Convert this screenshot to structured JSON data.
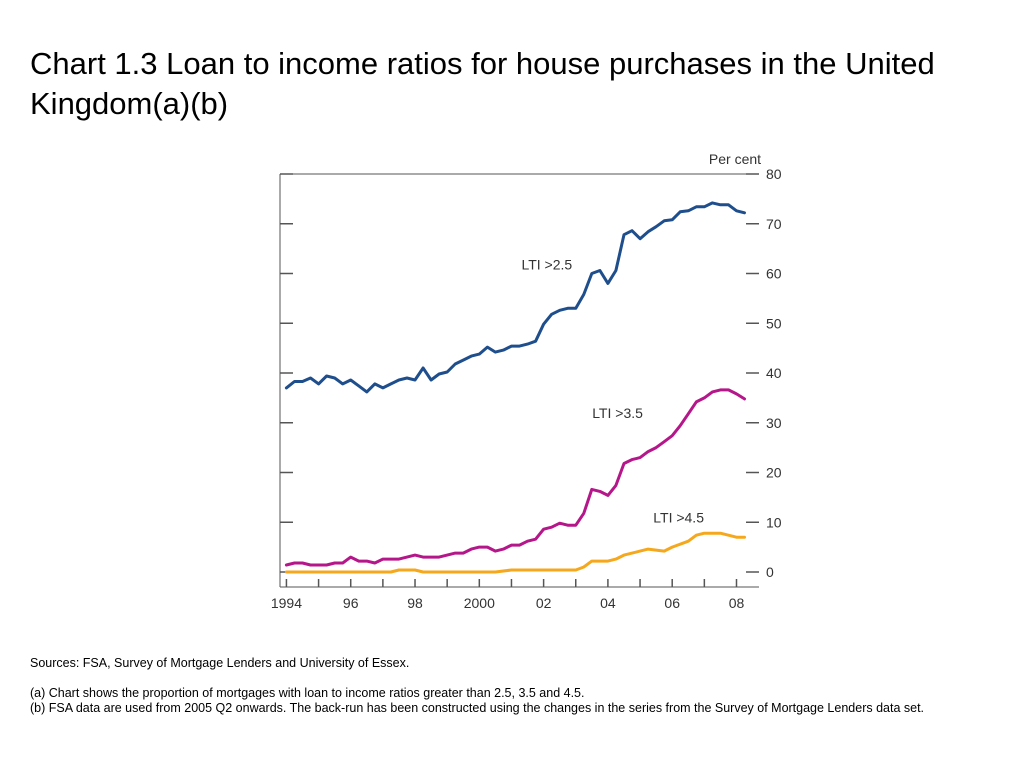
{
  "slide": {
    "title": "Chart 1.3  Loan to income ratios for house purchases in the United Kingdom(a)(b)",
    "sources": "Sources:  FSA, Survey of Mortgage Lenders and University of Essex.",
    "note_a": "(a)  Chart shows the proportion of mortgages with loan to income ratios greater than 2.5, 3.5 and 4.5.",
    "note_b": "(b)  FSA data are used from 2005 Q2 onwards.  The back-run has been constructed using the changes in the series from the Survey of Mortgage Lenders data set."
  },
  "chart_data": {
    "type": "line",
    "title": "",
    "xlabel": "",
    "ylabel": "Per cent",
    "y_axis_side": "right",
    "ylim": [
      0,
      80
    ],
    "y_ticks": [
      "0",
      "10",
      "20",
      "30",
      "40",
      "50",
      "60",
      "70",
      "80"
    ],
    "x_tick_labels": [
      "1994",
      "96",
      "98",
      "2000",
      "02",
      "04",
      "06",
      "08"
    ],
    "x_tick_years": [
      1994,
      1996,
      1998,
      2000,
      2002,
      2004,
      2006,
      2008
    ],
    "xlim": [
      1993.8,
      2008.7
    ],
    "grid": false,
    "colors": {
      "lti_25": "#1f4e8c",
      "lti_35": "#b5178a",
      "lti_45": "#f5a81c",
      "axis": "#555555"
    },
    "series": [
      {
        "name": "LTI >2.5",
        "color": "#1f4e8c",
        "points": [
          [
            1994.0,
            37.0
          ],
          [
            1994.25,
            38.3
          ],
          [
            1994.5,
            38.3
          ],
          [
            1994.75,
            39.0
          ],
          [
            1995.0,
            37.8
          ],
          [
            1995.25,
            39.4
          ],
          [
            1995.5,
            39.0
          ],
          [
            1995.75,
            37.8
          ],
          [
            1996.0,
            38.6
          ],
          [
            1996.25,
            37.4
          ],
          [
            1996.5,
            36.2
          ],
          [
            1996.75,
            37.8
          ],
          [
            1997.0,
            37.0
          ],
          [
            1997.25,
            37.8
          ],
          [
            1997.5,
            38.6
          ],
          [
            1997.75,
            39.0
          ],
          [
            1998.0,
            38.6
          ],
          [
            1998.25,
            41.0
          ],
          [
            1998.5,
            38.6
          ],
          [
            1998.75,
            39.8
          ],
          [
            1999.0,
            40.2
          ],
          [
            1999.25,
            41.8
          ],
          [
            1999.5,
            42.6
          ],
          [
            1999.75,
            43.4
          ],
          [
            2000.0,
            43.8
          ],
          [
            2000.25,
            45.2
          ],
          [
            2000.5,
            44.2
          ],
          [
            2000.75,
            44.6
          ],
          [
            2001.0,
            45.4
          ],
          [
            2001.25,
            45.4
          ],
          [
            2001.5,
            45.8
          ],
          [
            2001.75,
            46.4
          ],
          [
            2002.0,
            49.8
          ],
          [
            2002.25,
            51.8
          ],
          [
            2002.5,
            52.6
          ],
          [
            2002.75,
            53.0
          ],
          [
            2003.0,
            53.0
          ],
          [
            2003.25,
            55.8
          ],
          [
            2003.5,
            60.0
          ],
          [
            2003.75,
            60.6
          ],
          [
            2004.0,
            58.0
          ],
          [
            2004.25,
            60.6
          ],
          [
            2004.5,
            67.8
          ],
          [
            2004.75,
            68.6
          ],
          [
            2005.0,
            67.0
          ],
          [
            2005.25,
            68.4
          ],
          [
            2005.5,
            69.4
          ],
          [
            2005.75,
            70.6
          ],
          [
            2006.0,
            70.8
          ],
          [
            2006.25,
            72.4
          ],
          [
            2006.5,
            72.6
          ],
          [
            2006.75,
            73.4
          ],
          [
            2007.0,
            73.4
          ],
          [
            2007.25,
            74.2
          ],
          [
            2007.5,
            73.8
          ],
          [
            2007.75,
            73.8
          ],
          [
            2008.0,
            72.6
          ],
          [
            2008.25,
            72.2
          ]
        ]
      },
      {
        "name": "LTI >3.5",
        "color": "#b5178a",
        "points": [
          [
            1994.0,
            1.4
          ],
          [
            1994.25,
            1.8
          ],
          [
            1994.5,
            1.8
          ],
          [
            1994.75,
            1.4
          ],
          [
            1995.0,
            1.4
          ],
          [
            1995.25,
            1.4
          ],
          [
            1995.5,
            1.8
          ],
          [
            1995.75,
            1.8
          ],
          [
            1996.0,
            3.0
          ],
          [
            1996.25,
            2.2
          ],
          [
            1996.5,
            2.2
          ],
          [
            1996.75,
            1.8
          ],
          [
            1997.0,
            2.6
          ],
          [
            1997.25,
            2.6
          ],
          [
            1997.5,
            2.6
          ],
          [
            1997.75,
            3.0
          ],
          [
            1998.0,
            3.4
          ],
          [
            1998.25,
            3.0
          ],
          [
            1998.5,
            3.0
          ],
          [
            1998.75,
            3.0
          ],
          [
            1999.0,
            3.4
          ],
          [
            1999.25,
            3.8
          ],
          [
            1999.5,
            3.8
          ],
          [
            1999.75,
            4.6
          ],
          [
            2000.0,
            5.0
          ],
          [
            2000.25,
            5.0
          ],
          [
            2000.5,
            4.2
          ],
          [
            2000.75,
            4.6
          ],
          [
            2001.0,
            5.4
          ],
          [
            2001.25,
            5.4
          ],
          [
            2001.5,
            6.2
          ],
          [
            2001.75,
            6.6
          ],
          [
            2002.0,
            8.6
          ],
          [
            2002.25,
            9.0
          ],
          [
            2002.5,
            9.8
          ],
          [
            2002.75,
            9.4
          ],
          [
            2003.0,
            9.4
          ],
          [
            2003.25,
            11.8
          ],
          [
            2003.5,
            16.6
          ],
          [
            2003.75,
            16.2
          ],
          [
            2004.0,
            15.4
          ],
          [
            2004.25,
            17.4
          ],
          [
            2004.5,
            21.8
          ],
          [
            2004.75,
            22.6
          ],
          [
            2005.0,
            23.0
          ],
          [
            2005.25,
            24.2
          ],
          [
            2005.5,
            25.0
          ],
          [
            2005.75,
            26.2
          ],
          [
            2006.0,
            27.4
          ],
          [
            2006.25,
            29.4
          ],
          [
            2006.5,
            31.8
          ],
          [
            2006.75,
            34.2
          ],
          [
            2007.0,
            35.0
          ],
          [
            2007.25,
            36.2
          ],
          [
            2007.5,
            36.6
          ],
          [
            2007.75,
            36.6
          ],
          [
            2008.0,
            35.8
          ],
          [
            2008.25,
            34.8
          ]
        ]
      },
      {
        "name": "LTI >4.5",
        "color": "#f5a81c",
        "points": [
          [
            1994.0,
            0.0
          ],
          [
            1994.5,
            0.0
          ],
          [
            1995.0,
            0.0
          ],
          [
            1995.5,
            0.0
          ],
          [
            1996.0,
            0.0
          ],
          [
            1996.5,
            0.0
          ],
          [
            1997.0,
            0.0
          ],
          [
            1997.25,
            0.0
          ],
          [
            1997.5,
            0.4
          ],
          [
            1998.0,
            0.4
          ],
          [
            1998.25,
            0.0
          ],
          [
            1999.0,
            0.0
          ],
          [
            2000.0,
            0.0
          ],
          [
            2000.5,
            0.0
          ],
          [
            2001.0,
            0.4
          ],
          [
            2002.0,
            0.4
          ],
          [
            2002.5,
            0.4
          ],
          [
            2003.0,
            0.4
          ],
          [
            2003.25,
            1.0
          ],
          [
            2003.5,
            2.2
          ],
          [
            2004.0,
            2.2
          ],
          [
            2004.25,
            2.6
          ],
          [
            2004.5,
            3.4
          ],
          [
            2005.0,
            4.2
          ],
          [
            2005.25,
            4.6
          ],
          [
            2005.75,
            4.2
          ],
          [
            2006.0,
            5.0
          ],
          [
            2006.5,
            6.2
          ],
          [
            2006.75,
            7.4
          ],
          [
            2007.0,
            7.8
          ],
          [
            2007.5,
            7.8
          ],
          [
            2008.0,
            7.0
          ],
          [
            2008.25,
            7.0
          ]
        ]
      }
    ],
    "annotations": [
      {
        "text": "LTI >2.5",
        "series": "LTI >2.5",
        "x": 2002.1,
        "y": 60.8
      },
      {
        "text": "LTI >3.5",
        "series": "LTI >3.5",
        "x": 2004.3,
        "y": 31.0
      },
      {
        "text": "LTI >4.5",
        "series": "LTI >4.5",
        "x": 2006.2,
        "y": 10.0
      }
    ]
  }
}
